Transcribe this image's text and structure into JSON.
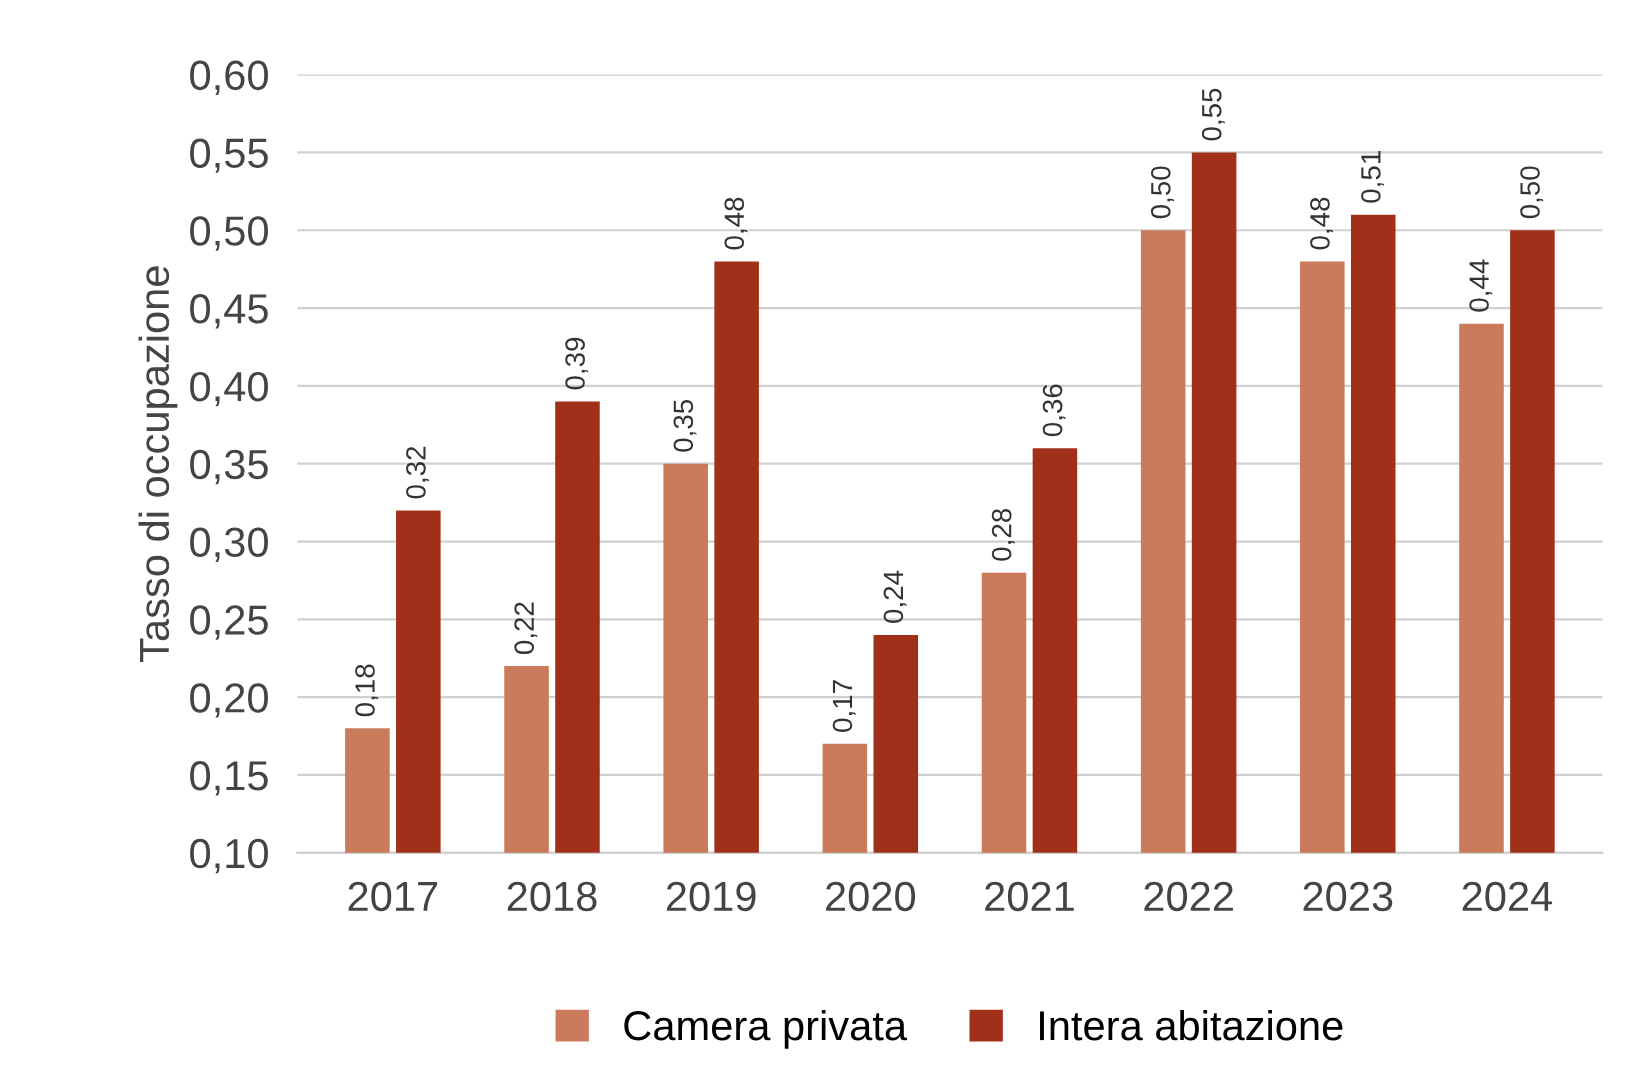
{
  "chart_data": {
    "type": "bar",
    "ylabel": "Tasso di occupazione",
    "categories": [
      "2017",
      "2018",
      "2019",
      "2020",
      "2021",
      "2022",
      "2023",
      "2024"
    ],
    "series": [
      {
        "name": "Camera privata",
        "color": "#c97b5c",
        "values": [
          0.18,
          0.22,
          0.35,
          0.17,
          0.28,
          0.5,
          0.48,
          0.44
        ],
        "value_labels": [
          "0,18",
          "0,22",
          "0,35",
          "0,17",
          "0,28",
          "0,50",
          "0,48",
          "0,44"
        ]
      },
      {
        "name": "Intera abitazione",
        "color": "#a1301b",
        "values": [
          0.32,
          0.39,
          0.48,
          0.24,
          0.36,
          0.55,
          0.51,
          0.5
        ],
        "value_labels": [
          "0,32",
          "0,39",
          "0,48",
          "0,24",
          "0,36",
          "0,55",
          "0,51",
          "0,50"
        ]
      }
    ],
    "ylim": [
      0.1,
      0.6
    ],
    "yticks": [
      {
        "value": 0.1,
        "label": "0,10"
      },
      {
        "value": 0.15,
        "label": "0,15"
      },
      {
        "value": 0.2,
        "label": "0,20"
      },
      {
        "value": 0.25,
        "label": "0,25"
      },
      {
        "value": 0.3,
        "label": "0,30"
      },
      {
        "value": 0.35,
        "label": "0,35"
      },
      {
        "value": 0.4,
        "label": "0,40"
      },
      {
        "value": 0.45,
        "label": "0,45"
      },
      {
        "value": 0.5,
        "label": "0,50"
      },
      {
        "value": 0.55,
        "label": "0,55"
      },
      {
        "value": 0.6,
        "label": "0,60"
      }
    ],
    "grid": "y",
    "legend": "bottom"
  }
}
